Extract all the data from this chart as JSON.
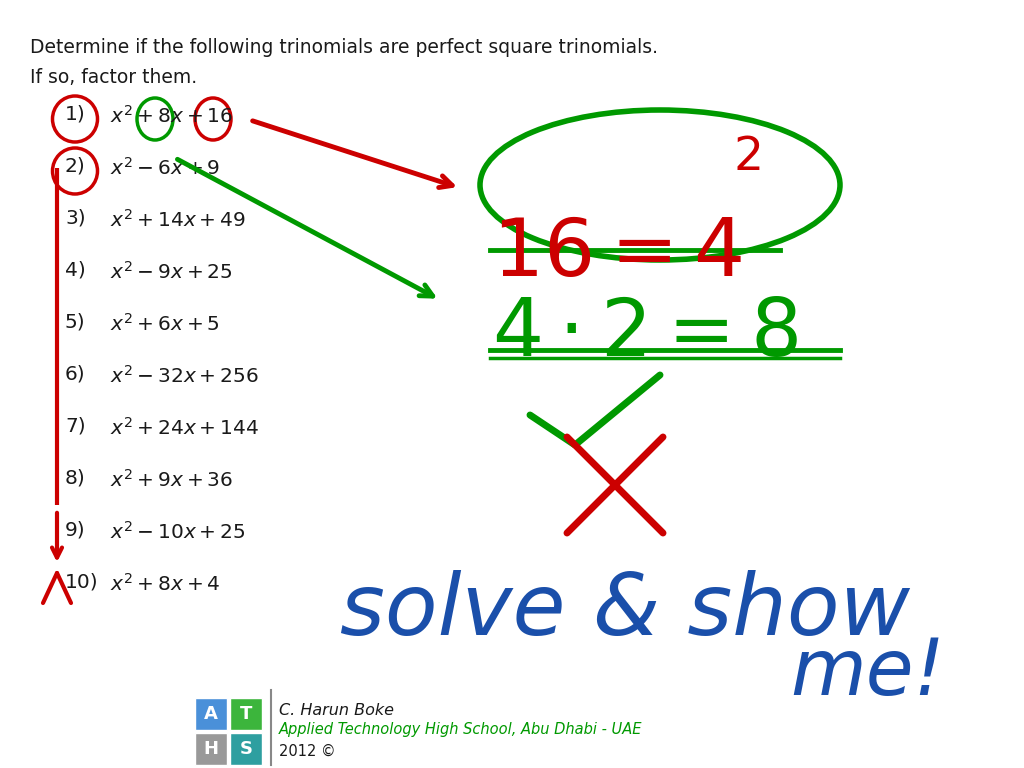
{
  "bg_color": "#ffffff",
  "title_line1": "Determine if the following trinomials are perfect square trinomials.",
  "title_line2": "If so, factor them.",
  "red_color": "#cc0000",
  "green_color": "#009900",
  "blue_color": "#1a4faa",
  "dark_color": "#1a1a1a",
  "problems": [
    [
      1,
      "$x^2 + 8x + 16$"
    ],
    [
      2,
      "$x^2 - 6x + 9$"
    ],
    [
      3,
      "$x^2 + 14x + 49$"
    ],
    [
      4,
      "$x^2 - 9x + 25$"
    ],
    [
      5,
      "$x^2 + 6x + 5$"
    ],
    [
      6,
      "$x^2 - 32x + 256$"
    ],
    [
      7,
      "$x^2 + 24x + 144$"
    ],
    [
      8,
      "$x^2 + 9x + 36$"
    ],
    [
      9,
      "$x^2 - 10x + 25$"
    ],
    [
      10,
      "$x^2 + 8x + 4$"
    ]
  ],
  "logo_A_color": "#4a90d9",
  "logo_T_color": "#3cb53c",
  "logo_H_color": "#999999",
  "logo_S_color": "#2e9fa0"
}
